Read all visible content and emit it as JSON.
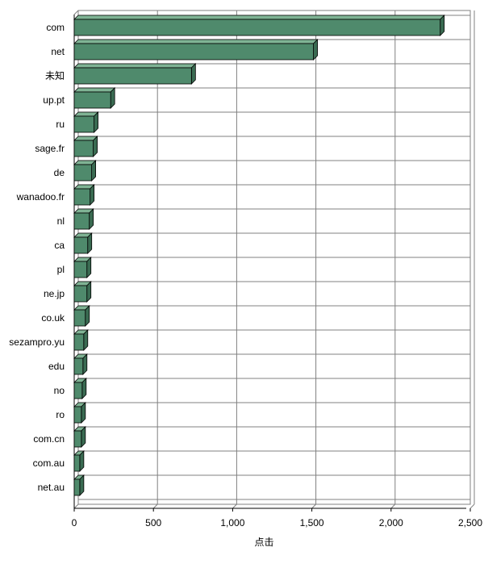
{
  "chart_data": {
    "type": "bar",
    "orientation": "horizontal",
    "categories": [
      "com",
      "net",
      "未知",
      "up.pt",
      "ru",
      "sage.fr",
      "de",
      "wanadoo.fr",
      "nl",
      "ca",
      "pl",
      "ne.jp",
      "co.uk",
      "sezampro.yu",
      "edu",
      "no",
      "ro",
      "com.cn",
      "com.au",
      "net.au"
    ],
    "values": [
      2310,
      1510,
      740,
      230,
      125,
      120,
      110,
      100,
      95,
      85,
      80,
      80,
      70,
      60,
      55,
      50,
      45,
      45,
      35,
      35
    ],
    "xlabel": "点击",
    "ylabel": "",
    "xlim": [
      0,
      2500
    ],
    "xticks": [
      0,
      500,
      1000,
      1500,
      2000,
      2500
    ],
    "xtick_labels": [
      "0",
      "500",
      "1,000",
      "1,500",
      "2,000",
      "2,500"
    ],
    "grid": true,
    "bar_color": "#4f8a6c",
    "bar_top_color": "#7fb394",
    "bar_side_color": "#3a6b52",
    "gridline_color": "#808080"
  }
}
